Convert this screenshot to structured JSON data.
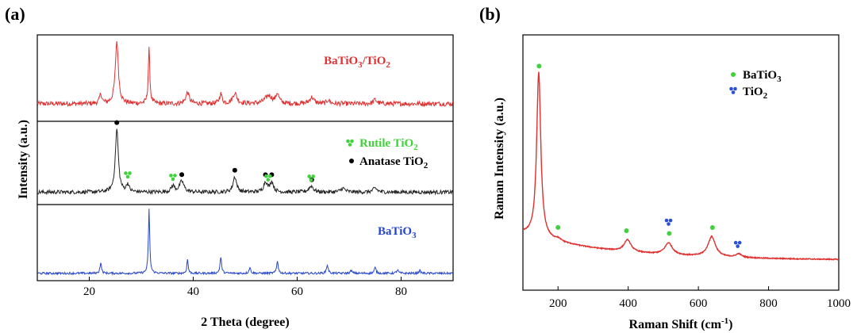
{
  "chart_data": [
    {
      "panel": "(a)",
      "type": "line",
      "xlabel": "2 Theta (degree)",
      "ylabel": "Intensity (a.u.)",
      "xlim": [
        10,
        90
      ],
      "xticks": [
        20,
        40,
        60,
        80
      ],
      "ylim": [
        0,
        3
      ],
      "subplots": [
        {
          "name": "BaTiO3/TiO2",
          "label_main": "BaTiO",
          "label_sub1": "3",
          "label_mid": "/TiO",
          "label_sub2": "2",
          "color": "#e03131",
          "baseline": 0.18,
          "noise": 0.06,
          "ylim": [
            0,
            1
          ],
          "peaks": [
            [
              22.2,
              0.12,
              0.25
            ],
            [
              25.3,
              0.78,
              0.35
            ],
            [
              31.5,
              0.68,
              0.18
            ],
            [
              38.9,
              0.14,
              0.4
            ],
            [
              45.3,
              0.12,
              0.3
            ],
            [
              48.0,
              0.13,
              0.5
            ],
            [
              54.5,
              0.1,
              0.8
            ],
            [
              56.2,
              0.12,
              0.35
            ],
            [
              62.8,
              0.08,
              0.5
            ],
            [
              66.0,
              0.05,
              0.3
            ],
            [
              75.0,
              0.05,
              0.4
            ]
          ]
        },
        {
          "name": "TiO2",
          "color": "#222222",
          "baseline": 0.12,
          "noise": 0.05,
          "ylim": [
            0,
            1
          ],
          "peaks": [
            [
              25.3,
              0.82,
              0.35
            ],
            [
              27.4,
              0.1,
              0.3
            ],
            [
              36.1,
              0.08,
              0.4
            ],
            [
              37.8,
              0.14,
              0.5
            ],
            [
              48.0,
              0.2,
              0.4
            ],
            [
              53.9,
              0.13,
              0.4
            ],
            [
              55.1,
              0.13,
              0.4
            ],
            [
              62.7,
              0.08,
              0.5
            ],
            [
              68.8,
              0.05,
              0.5
            ],
            [
              75.0,
              0.05,
              0.5
            ]
          ]
        },
        {
          "name": "BaTiO3",
          "label_main": "BaTiO",
          "label_sub1": "3",
          "color": "#2545c9",
          "baseline": 0.06,
          "noise": 0.03,
          "ylim": [
            0,
            1
          ],
          "peaks": [
            [
              22.2,
              0.15,
              0.18
            ],
            [
              31.5,
              0.92,
              0.15
            ],
            [
              38.9,
              0.2,
              0.15
            ],
            [
              45.3,
              0.23,
              0.18
            ],
            [
              50.9,
              0.08,
              0.2
            ],
            [
              56.2,
              0.18,
              0.18
            ],
            [
              65.8,
              0.12,
              0.2
            ],
            [
              70.4,
              0.04,
              0.2
            ],
            [
              75.0,
              0.08,
              0.2
            ],
            [
              79.3,
              0.05,
              0.2
            ],
            [
              83.6,
              0.04,
              0.2
            ]
          ]
        }
      ],
      "markers_rutile": [
        27.4,
        36.1,
        54.4,
        62.7
      ],
      "markers_anatase": [
        25.3,
        37.8,
        48.0,
        53.9,
        55.1,
        62.8
      ],
      "legend": {
        "rutile_main": "Rutile TiO",
        "rutile_sub": "2",
        "anatase_main": "Anatase TiO",
        "anatase_sub": "2"
      }
    },
    {
      "panel": "(b)",
      "type": "line",
      "xlabel_main": "Raman Shift (cm",
      "xlabel_sup": "-1",
      "xlabel_end": ")",
      "ylabel": "Raman Intensity (a.u.)",
      "xlim": [
        100,
        1000
      ],
      "xticks": [
        200,
        400,
        600,
        800,
        1000
      ],
      "ylim": [
        0,
        1.0
      ],
      "series": {
        "name": "BaTiO3/TiO2",
        "color": "#e03131",
        "baseline_start": 0.2,
        "baseline_end": 0.09,
        "peaks": [
          [
            145,
            0.7,
            7
          ],
          [
            200,
            0.01,
            10
          ],
          [
            398,
            0.05,
            12
          ],
          [
            515,
            0.05,
            13
          ],
          [
            638,
            0.085,
            13
          ],
          [
            715,
            0.015,
            10
          ]
        ]
      },
      "markers_batio3": [
        146,
        200,
        395,
        517,
        640
      ],
      "markers_tio2": [
        515,
        712
      ],
      "legend": {
        "batio3_main": "BaTiO",
        "batio3_sub": "3",
        "tio2_main": "TiO",
        "tio2_sub": "2"
      }
    }
  ],
  "colors": {
    "rutile_marker": "#3fd23a",
    "anatase_marker": "#000000",
    "batio3_marker": "#3fd23a",
    "tio2_marker": "#2a4fd6",
    "axis": "#000000"
  }
}
